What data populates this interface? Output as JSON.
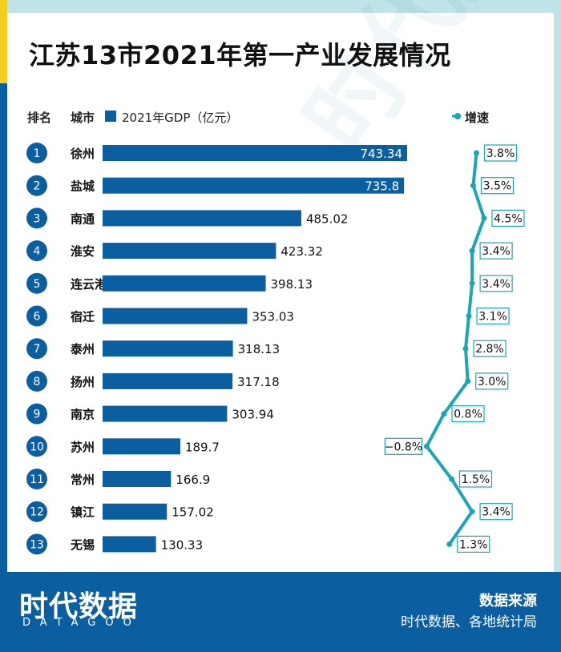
{
  "title": "江苏13市2021年第一产业发展情况",
  "headers": {
    "rank": "排名",
    "city": "城市",
    "gdp": "2021年GDP（亿元）",
    "growth": "增速"
  },
  "colors": {
    "bar": "#0b5fa0",
    "growth_line": "#1aa6b5",
    "accent_yellow": "#f2cf20"
  },
  "chart_data": {
    "type": "bar",
    "orientation": "horizontal",
    "ranks": [
      "1",
      "2",
      "3",
      "4",
      "5",
      "6",
      "7",
      "8",
      "9",
      "10",
      "11",
      "12",
      "13"
    ],
    "categories": [
      "徐州",
      "盐城",
      "南通",
      "淮安",
      "连云港",
      "宿迁",
      "泰州",
      "扬州",
      "南京",
      "苏州",
      "常州",
      "镇江",
      "无锡"
    ],
    "series": [
      {
        "name": "2021年GDP（亿元）",
        "values": [
          743.34,
          735.8,
          485.02,
          423.32,
          398.13,
          353.03,
          318.13,
          317.18,
          303.94,
          189.7,
          166.9,
          157.02,
          130.33
        ]
      },
      {
        "name": "增速",
        "type": "line",
        "values": [
          3.8,
          3.5,
          4.5,
          3.4,
          3.4,
          3.1,
          2.8,
          3.0,
          0.8,
          -0.8,
          1.5,
          3.4,
          1.3
        ]
      }
    ],
    "value_labels": [
      "743.34",
      "735.8",
      "485.02",
      "423.32",
      "398.13",
      "353.03",
      "318.13",
      "317.18",
      "303.94",
      "189.7",
      "166.9",
      "157.02",
      "130.33"
    ],
    "growth_labels": [
      "3.8%",
      "3.5%",
      "4.5%",
      "3.4%",
      "3.4%",
      "3.1%",
      "2.8%",
      "3.0%",
      "0.8%",
      "−0.8%",
      "1.5%",
      "3.4%",
      "1.3%"
    ]
  },
  "footer": {
    "logo": "时代数据",
    "logo_en": "DATAGOO",
    "source_title": "数据来源",
    "source_text": "时代数据、各地统计局"
  },
  "watermark": "时代数据"
}
